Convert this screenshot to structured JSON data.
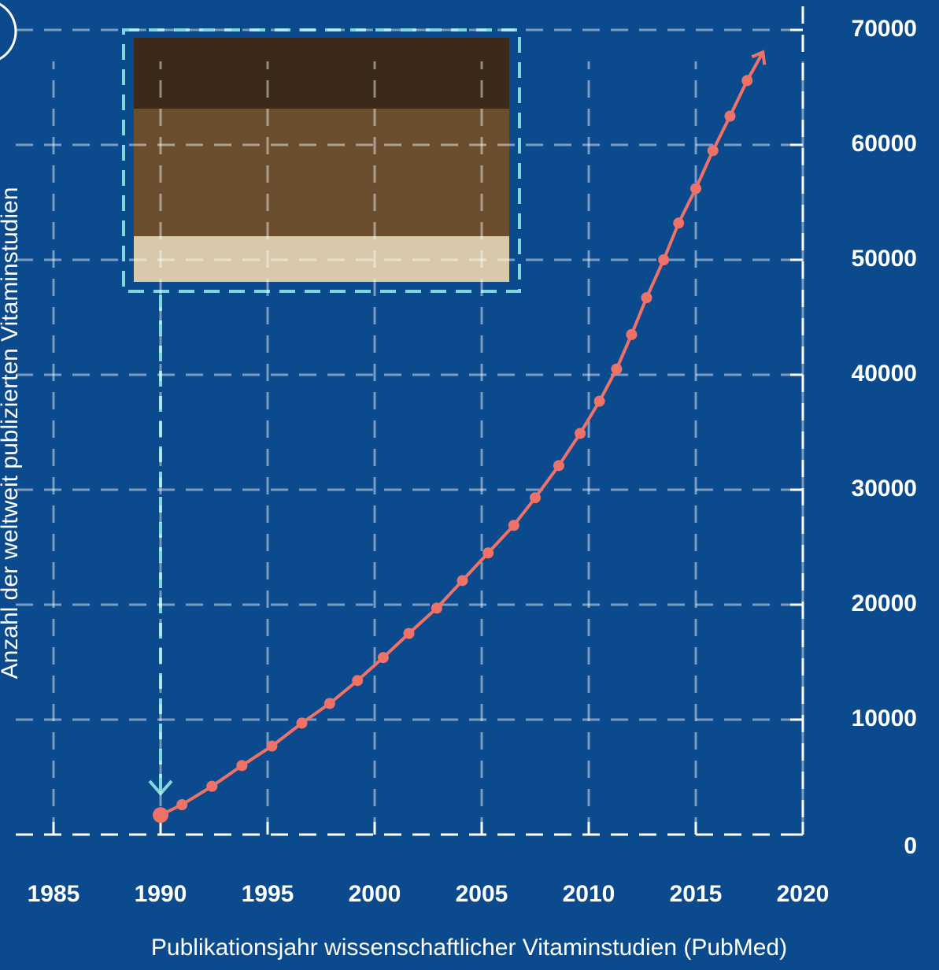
{
  "chart_data": {
    "type": "line",
    "x_label": "Publikationsjahr wissenschaftlicher Vitaminstudien (PubMed)",
    "y_label": "Anzahl der weltweit publizierten Vitaminstudien",
    "x": [
      1990.0,
      1991.0,
      1992.4,
      1993.8,
      1995.2,
      1996.6,
      1997.9,
      1999.2,
      2000.4,
      2001.6,
      2002.9,
      2004.1,
      2005.3,
      2006.5,
      2007.5,
      2008.6,
      2009.6,
      2010.5,
      2011.3,
      2012.0,
      2012.7,
      2013.5,
      2014.2,
      2015.0,
      2015.8,
      2016.6,
      2017.4
    ],
    "series": [
      {
        "color": "#ef7268",
        "values": [
          1700,
          2600,
          4200,
          6000,
          7700,
          9700,
          11400,
          13400,
          15400,
          17500,
          19700,
          22100,
          24500,
          26900,
          29300,
          32100,
          34900,
          37700,
          40500,
          43500,
          46700,
          50000,
          53200,
          56200,
          59500,
          62500,
          65600
        ]
      }
    ],
    "xlim": [
      1985,
      2020
    ],
    "xticks": [
      1985,
      1990,
      1995,
      2000,
      2005,
      2010,
      2015,
      2020
    ],
    "ylim": [
      0,
      70000
    ],
    "yticks": [
      0,
      10000,
      20000,
      30000,
      40000,
      50000,
      60000,
      70000
    ],
    "grid": true
  }
}
